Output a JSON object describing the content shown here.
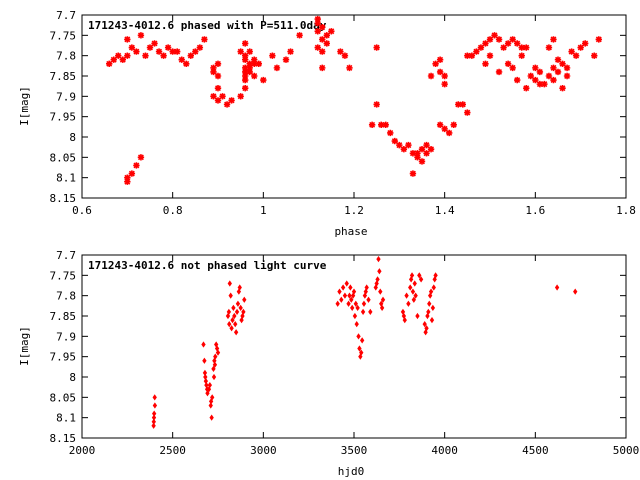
{
  "chart_data": [
    {
      "type": "scatter",
      "title": "171243-4012.6 phased with P=511.0day",
      "xlabel": "phase",
      "ylabel": "I[mag]",
      "xlim": [
        0.6,
        1.8
      ],
      "ylim": [
        8.15,
        7.7
      ],
      "y_inverted": true,
      "grid": false,
      "marker_color": "#ff0000",
      "marker": "star",
      "xticks": [
        "0.6",
        "0.8",
        "1",
        "1.2",
        "1.4",
        "1.6",
        "1.8"
      ],
      "yticks": [
        "7.7",
        "7.75",
        "7.8",
        "7.85",
        "7.9",
        "7.95",
        "8",
        "8.05",
        "8.1",
        "8.15"
      ],
      "points": [
        [
          0.66,
          7.82
        ],
        [
          0.67,
          7.81
        ],
        [
          0.68,
          7.8
        ],
        [
          0.69,
          7.81
        ],
        [
          0.7,
          7.8
        ],
        [
          0.7,
          7.76
        ],
        [
          0.71,
          7.78
        ],
        [
          0.72,
          7.79
        ],
        [
          0.73,
          7.75
        ],
        [
          0.74,
          7.8
        ],
        [
          0.75,
          7.78
        ],
        [
          0.76,
          7.77
        ],
        [
          0.77,
          7.79
        ],
        [
          0.78,
          7.8
        ],
        [
          0.79,
          7.78
        ],
        [
          0.8,
          7.79
        ],
        [
          0.81,
          7.79
        ],
        [
          0.82,
          7.81
        ],
        [
          0.83,
          7.82
        ],
        [
          0.84,
          7.8
        ],
        [
          0.85,
          7.79
        ],
        [
          0.86,
          7.78
        ],
        [
          0.87,
          7.76
        ],
        [
          0.7,
          8.1
        ],
        [
          0.7,
          8.11
        ],
        [
          0.71,
          8.09
        ],
        [
          0.72,
          8.07
        ],
        [
          0.73,
          8.05
        ],
        [
          0.89,
          7.83
        ],
        [
          0.89,
          7.84
        ],
        [
          0.9,
          7.85
        ],
        [
          0.9,
          7.88
        ],
        [
          0.89,
          7.9
        ],
        [
          0.9,
          7.91
        ],
        [
          0.91,
          7.9
        ],
        [
          0.92,
          7.92
        ],
        [
          0.93,
          7.91
        ],
        [
          0.95,
          7.9
        ],
        [
          0.9,
          7.82
        ],
        [
          0.95,
          7.79
        ],
        [
          0.96,
          7.8
        ],
        [
          0.96,
          7.81
        ],
        [
          0.96,
          7.83
        ],
        [
          0.96,
          7.84
        ],
        [
          0.96,
          7.85
        ],
        [
          0.96,
          7.86
        ],
        [
          0.97,
          7.79
        ],
        [
          0.97,
          7.82
        ],
        [
          0.97,
          7.83
        ],
        [
          0.97,
          7.84
        ],
        [
          0.98,
          7.81
        ],
        [
          0.98,
          7.82
        ],
        [
          0.98,
          7.85
        ],
        [
          0.96,
          7.77
        ],
        [
          0.99,
          7.82
        ],
        [
          0.96,
          7.88
        ],
        [
          1.0,
          7.86
        ],
        [
          1.02,
          7.8
        ],
        [
          1.03,
          7.83
        ],
        [
          1.05,
          7.81
        ],
        [
          1.06,
          7.79
        ],
        [
          1.08,
          7.75
        ],
        [
          1.12,
          7.71
        ],
        [
          1.12,
          7.72
        ],
        [
          1.12,
          7.74
        ],
        [
          1.13,
          7.73
        ],
        [
          1.13,
          7.76
        ],
        [
          1.14,
          7.77
        ],
        [
          1.12,
          7.78
        ],
        [
          1.13,
          7.79
        ],
        [
          1.13,
          7.83
        ],
        [
          1.14,
          7.75
        ],
        [
          1.15,
          7.74
        ],
        [
          1.17,
          7.79
        ],
        [
          1.18,
          7.8
        ],
        [
          1.19,
          7.83
        ],
        [
          1.25,
          7.78
        ],
        [
          1.25,
          7.92
        ],
        [
          1.24,
          7.97
        ],
        [
          1.26,
          7.97
        ],
        [
          1.27,
          7.97
        ],
        [
          1.28,
          7.99
        ],
        [
          1.29,
          8.01
        ],
        [
          1.3,
          8.02
        ],
        [
          1.31,
          8.03
        ],
        [
          1.32,
          8.02
        ],
        [
          1.33,
          8.04
        ],
        [
          1.34,
          8.04
        ],
        [
          1.34,
          8.05
        ],
        [
          1.33,
          8.09
        ],
        [
          1.35,
          8.03
        ],
        [
          1.36,
          8.02
        ],
        [
          1.37,
          8.03
        ],
        [
          1.35,
          8.06
        ],
        [
          1.36,
          8.04
        ],
        [
          1.37,
          7.85
        ],
        [
          1.38,
          7.82
        ],
        [
          1.39,
          7.81
        ],
        [
          1.39,
          7.84
        ],
        [
          1.4,
          7.85
        ],
        [
          1.4,
          7.87
        ],
        [
          1.39,
          7.97
        ],
        [
          1.4,
          7.98
        ],
        [
          1.41,
          7.99
        ],
        [
          1.42,
          7.97
        ],
        [
          1.43,
          7.92
        ],
        [
          1.44,
          7.92
        ],
        [
          1.45,
          7.94
        ],
        [
          1.45,
          7.8
        ],
        [
          1.46,
          7.8
        ],
        [
          1.47,
          7.79
        ],
        [
          1.48,
          7.78
        ],
        [
          1.49,
          7.77
        ],
        [
          1.5,
          7.76
        ],
        [
          1.51,
          7.75
        ],
        [
          1.52,
          7.76
        ],
        [
          1.53,
          7.78
        ],
        [
          1.54,
          7.77
        ],
        [
          1.55,
          7.76
        ],
        [
          1.56,
          7.77
        ],
        [
          1.57,
          7.78
        ],
        [
          1.58,
          7.78
        ],
        [
          1.49,
          7.82
        ],
        [
          1.5,
          7.8
        ],
        [
          1.52,
          7.84
        ],
        [
          1.54,
          7.82
        ],
        [
          1.55,
          7.83
        ],
        [
          1.56,
          7.86
        ],
        [
          1.57,
          7.8
        ],
        [
          1.58,
          7.88
        ],
        [
          1.59,
          7.85
        ],
        [
          1.6,
          7.86
        ],
        [
          1.61,
          7.87
        ],
        [
          1.61,
          7.84
        ],
        [
          1.62,
          7.87
        ],
        [
          1.63,
          7.85
        ],
        [
          1.64,
          7.83
        ],
        [
          1.64,
          7.86
        ],
        [
          1.65,
          7.84
        ],
        [
          1.66,
          7.88
        ],
        [
          1.67,
          7.85
        ],
        [
          1.63,
          7.78
        ],
        [
          1.64,
          7.76
        ],
        [
          1.65,
          7.81
        ],
        [
          1.66,
          7.82
        ],
        [
          1.67,
          7.83
        ],
        [
          1.68,
          7.79
        ],
        [
          1.69,
          7.8
        ],
        [
          1.7,
          7.78
        ],
        [
          1.71,
          7.77
        ],
        [
          1.73,
          7.8
        ],
        [
          1.74,
          7.76
        ],
        [
          1.6,
          7.83
        ]
      ]
    },
    {
      "type": "scatter",
      "title": "171243-4012.6 not phased light curve",
      "xlabel": "hjd0",
      "ylabel": "I[mag]",
      "xlim": [
        2000,
        5000
      ],
      "ylim": [
        8.15,
        7.7
      ],
      "y_inverted": true,
      "grid": false,
      "marker_color": "#ff0000",
      "marker": "diamond",
      "xticks": [
        "2000",
        "2500",
        "3000",
        "3500",
        "4000",
        "4500",
        "5000"
      ],
      "yticks": [
        "7.7",
        "7.75",
        "7.8",
        "7.85",
        "7.9",
        "7.95",
        "8",
        "8.05",
        "8.1",
        "8.15"
      ],
      "points": [
        [
          2395,
          8.12
        ],
        [
          2396,
          8.11
        ],
        [
          2397,
          8.1
        ],
        [
          2398,
          8.09
        ],
        [
          2401,
          8.05
        ],
        [
          2402,
          8.07
        ],
        [
          2670,
          7.92
        ],
        [
          2675,
          7.96
        ],
        [
          2678,
          7.99
        ],
        [
          2680,
          8.0
        ],
        [
          2683,
          8.01
        ],
        [
          2686,
          8.02
        ],
        [
          2690,
          8.03
        ],
        [
          2692,
          8.04
        ],
        [
          2700,
          8.03
        ],
        [
          2705,
          8.02
        ],
        [
          2710,
          8.07
        ],
        [
          2712,
          8.06
        ],
        [
          2715,
          8.1
        ],
        [
          2718,
          8.05
        ],
        [
          2725,
          7.98
        ],
        [
          2728,
          8.0
        ],
        [
          2730,
          7.96
        ],
        [
          2733,
          7.97
        ],
        [
          2735,
          7.95
        ],
        [
          2740,
          7.92
        ],
        [
          2745,
          7.93
        ],
        [
          2750,
          7.94
        ],
        [
          2805,
          7.85
        ],
        [
          2810,
          7.84
        ],
        [
          2812,
          7.87
        ],
        [
          2815,
          7.77
        ],
        [
          2820,
          7.8
        ],
        [
          2825,
          7.88
        ],
        [
          2830,
          7.86
        ],
        [
          2835,
          7.83
        ],
        [
          2840,
          7.85
        ],
        [
          2845,
          7.87
        ],
        [
          2850,
          7.89
        ],
        [
          2855,
          7.84
        ],
        [
          2860,
          7.82
        ],
        [
          2865,
          7.79
        ],
        [
          2870,
          7.78
        ],
        [
          2875,
          7.83
        ],
        [
          2880,
          7.86
        ],
        [
          2885,
          7.85
        ],
        [
          2890,
          7.84
        ],
        [
          2895,
          7.81
        ],
        [
          3410,
          7.82
        ],
        [
          3420,
          7.79
        ],
        [
          3430,
          7.81
        ],
        [
          3440,
          7.78
        ],
        [
          3450,
          7.8
        ],
        [
          3460,
          7.77
        ],
        [
          3470,
          7.82
        ],
        [
          3475,
          7.8
        ],
        [
          3480,
          7.78
        ],
        [
          3485,
          7.81
        ],
        [
          3490,
          7.83
        ],
        [
          3495,
          7.8
        ],
        [
          3500,
          7.79
        ],
        [
          3505,
          7.85
        ],
        [
          3510,
          7.82
        ],
        [
          3515,
          7.87
        ],
        [
          3520,
          7.83
        ],
        [
          3525,
          7.9
        ],
        [
          3530,
          7.93
        ],
        [
          3535,
          7.95
        ],
        [
          3540,
          7.94
        ],
        [
          3545,
          7.91
        ],
        [
          3550,
          7.84
        ],
        [
          3555,
          7.82
        ],
        [
          3560,
          7.8
        ],
        [
          3565,
          7.79
        ],
        [
          3570,
          7.78
        ],
        [
          3580,
          7.81
        ],
        [
          3590,
          7.84
        ],
        [
          3620,
          7.78
        ],
        [
          3625,
          7.77
        ],
        [
          3630,
          7.76
        ],
        [
          3635,
          7.71
        ],
        [
          3640,
          7.74
        ],
        [
          3645,
          7.79
        ],
        [
          3650,
          7.82
        ],
        [
          3655,
          7.83
        ],
        [
          3660,
          7.81
        ],
        [
          3770,
          7.84
        ],
        [
          3775,
          7.85
        ],
        [
          3780,
          7.86
        ],
        [
          3790,
          7.8
        ],
        [
          3800,
          7.82
        ],
        [
          3810,
          7.78
        ],
        [
          3815,
          7.76
        ],
        [
          3820,
          7.75
        ],
        [
          3825,
          7.79
        ],
        [
          3830,
          7.81
        ],
        [
          3835,
          7.77
        ],
        [
          3840,
          7.8
        ],
        [
          3850,
          7.85
        ],
        [
          3860,
          7.75
        ],
        [
          3870,
          7.76
        ],
        [
          3890,
          7.87
        ],
        [
          3895,
          7.89
        ],
        [
          3900,
          7.88
        ],
        [
          3905,
          7.85
        ],
        [
          3910,
          7.84
        ],
        [
          3915,
          7.82
        ],
        [
          3920,
          7.8
        ],
        [
          3925,
          7.79
        ],
        [
          3930,
          7.86
        ],
        [
          3935,
          7.83
        ],
        [
          3940,
          7.78
        ],
        [
          3945,
          7.76
        ],
        [
          3950,
          7.75
        ],
        [
          4620,
          7.78
        ],
        [
          4720,
          7.79
        ]
      ]
    }
  ]
}
